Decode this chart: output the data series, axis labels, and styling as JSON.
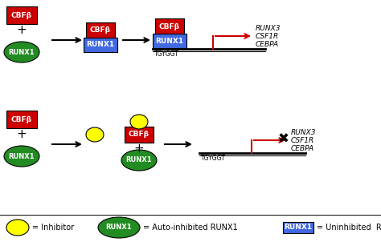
{
  "bg_color": "#ffffff",
  "red_color": "#cc0000",
  "blue_color": "#4169e1",
  "green_color": "#228b22",
  "yellow_color": "#ffff00",
  "arrow_color": "#000000",
  "red_arrow_color": "#cc0000",
  "text_italic_genes": [
    "RUNX3",
    "CSF1R",
    "CEBPA"
  ],
  "dna_label": "TGYGGT",
  "cbfb_label": "CBFβ",
  "runx1_label": "RUNX1",
  "fig_width": 4.74,
  "fig_height": 3.12,
  "dpi": 100
}
